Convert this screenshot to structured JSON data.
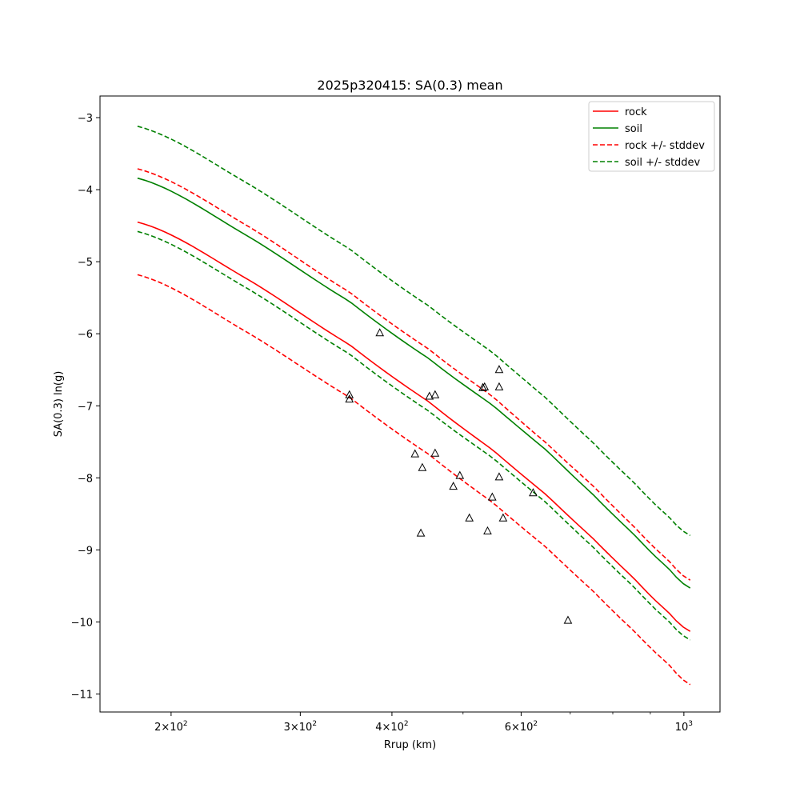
{
  "chart_data": {
    "type": "line",
    "title": "2025p320415: SA(0.3) mean",
    "xlabel": "Rrup (km)",
    "ylabel": "SA(0.3) ln(g)",
    "xscale": "log",
    "xlim": [
      160,
      1120
    ],
    "ylim": [
      -11.25,
      -2.7
    ],
    "x_ticks": [
      {
        "value": 200,
        "label": "2×10²",
        "mantissa": "2",
        "exp": "2"
      },
      {
        "value": 300,
        "label": "3×10²",
        "mantissa": "3",
        "exp": "2"
      },
      {
        "value": 400,
        "label": "4×10²",
        "mantissa": "4",
        "exp": "2"
      },
      {
        "value": 600,
        "label": "6×10²",
        "mantissa": "6",
        "exp": "2"
      },
      {
        "value": 1000,
        "label": "10³",
        "mantissa": "",
        "exp": "3"
      }
    ],
    "x_minor_ticks": [
      500,
      700,
      800,
      900
    ],
    "y_ticks": [
      {
        "value": -3,
        "label": "−3"
      },
      {
        "value": -4,
        "label": "−4"
      },
      {
        "value": -5,
        "label": "−5"
      },
      {
        "value": -6,
        "label": "−6"
      },
      {
        "value": -7,
        "label": "−7"
      },
      {
        "value": -8,
        "label": "−8"
      },
      {
        "value": -9,
        "label": "−9"
      },
      {
        "value": -10,
        "label": "−10"
      },
      {
        "value": -11,
        "label": "−11"
      }
    ],
    "legend_position": "top-right",
    "legend": [
      {
        "label": "rock",
        "color": "#ff0000",
        "style": "solid"
      },
      {
        "label": "soil",
        "color": "#008000",
        "style": "solid"
      },
      {
        "label": "rock +/- stddev",
        "color": "#ff0000",
        "style": "dashed"
      },
      {
        "label": "soil +/- stddev",
        "color": "#008000",
        "style": "dashed"
      }
    ],
    "series": [
      {
        "name": "rock",
        "color": "#ff0000",
        "style": "solid",
        "x": [
          180,
          250,
          350,
          450,
          550,
          650,
          750,
          850,
          950,
          1020
        ],
        "y": [
          -4.45,
          -5.2,
          -6.15,
          -6.95,
          -7.62,
          -8.24,
          -8.83,
          -9.37,
          -9.85,
          -10.13
        ]
      },
      {
        "name": "soil",
        "color": "#008000",
        "style": "solid",
        "x": [
          180,
          250,
          350,
          450,
          550,
          650,
          750,
          850,
          950,
          1020
        ],
        "y": [
          -3.84,
          -4.6,
          -5.55,
          -6.35,
          -7.0,
          -7.62,
          -8.22,
          -8.76,
          -9.24,
          -9.53
        ]
      },
      {
        "name": "rock + stddev",
        "color": "#ff0000",
        "style": "dashed",
        "x": [
          180,
          250,
          350,
          450,
          550,
          650,
          750,
          850,
          950,
          1020
        ],
        "y": [
          -3.71,
          -4.46,
          -5.42,
          -6.22,
          -6.88,
          -7.52,
          -8.1,
          -8.65,
          -9.13,
          -9.42
        ]
      },
      {
        "name": "rock - stddev",
        "color": "#ff0000",
        "style": "dashed",
        "x": [
          180,
          250,
          350,
          450,
          550,
          650,
          750,
          850,
          950,
          1020
        ],
        "y": [
          -5.18,
          -5.94,
          -6.88,
          -7.68,
          -8.35,
          -8.97,
          -9.56,
          -10.1,
          -10.57,
          -10.87
        ]
      },
      {
        "name": "soil + stddev",
        "color": "#008000",
        "style": "dashed",
        "x": [
          180,
          250,
          350,
          450,
          550,
          650,
          750,
          850,
          950,
          1020
        ],
        "y": [
          -3.12,
          -3.87,
          -4.82,
          -5.62,
          -6.27,
          -6.9,
          -7.5,
          -8.04,
          -8.52,
          -8.8
        ]
      },
      {
        "name": "soil - stddev",
        "color": "#008000",
        "style": "dashed",
        "x": [
          180,
          250,
          350,
          450,
          550,
          650,
          750,
          850,
          950,
          1020
        ],
        "y": [
          -4.58,
          -5.33,
          -6.28,
          -7.08,
          -7.73,
          -8.35,
          -8.95,
          -9.49,
          -9.97,
          -10.25
        ]
      }
    ],
    "observations": {
      "marker": "triangle-open",
      "color": "#000000",
      "points": [
        {
          "x": 350,
          "y": -6.85
        },
        {
          "x": 350,
          "y": -6.91
        },
        {
          "x": 385,
          "y": -5.99
        },
        {
          "x": 430,
          "y": -7.67
        },
        {
          "x": 440,
          "y": -7.86
        },
        {
          "x": 438,
          "y": -8.77
        },
        {
          "x": 450,
          "y": -6.87
        },
        {
          "x": 458,
          "y": -6.85
        },
        {
          "x": 458,
          "y": -7.66
        },
        {
          "x": 485,
          "y": -8.12
        },
        {
          "x": 495,
          "y": -7.97
        },
        {
          "x": 510,
          "y": -8.56
        },
        {
          "x": 532,
          "y": -6.75
        },
        {
          "x": 535,
          "y": -6.74
        },
        {
          "x": 540,
          "y": -8.74
        },
        {
          "x": 548,
          "y": -8.27
        },
        {
          "x": 560,
          "y": -6.5
        },
        {
          "x": 560,
          "y": -6.74
        },
        {
          "x": 560,
          "y": -7.99
        },
        {
          "x": 567,
          "y": -8.56
        },
        {
          "x": 623,
          "y": -8.21
        },
        {
          "x": 695,
          "y": -9.98
        }
      ]
    }
  }
}
